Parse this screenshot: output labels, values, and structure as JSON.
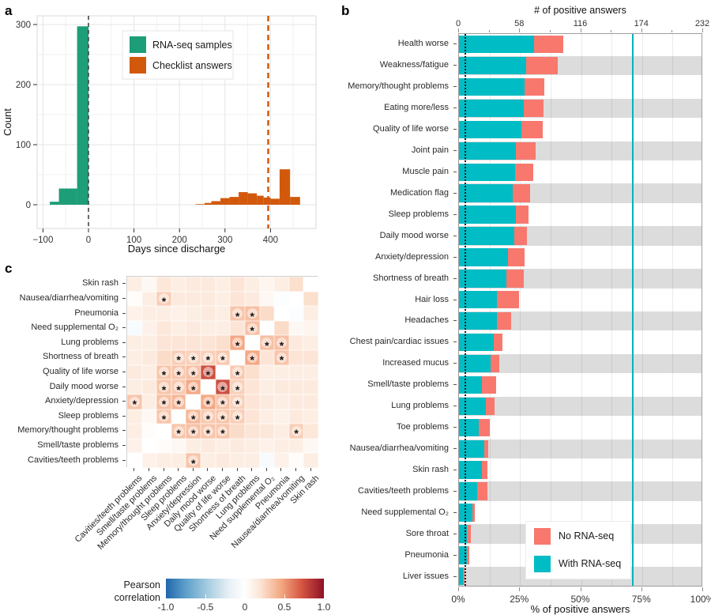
{
  "panels": {
    "a": {
      "label": "a"
    },
    "b": {
      "label": "b"
    },
    "c": {
      "label": "c"
    }
  },
  "chart_data": [
    {
      "id": "a",
      "type": "histogram",
      "xlabel": "Days since discharge",
      "ylabel": "Count",
      "xticks": [
        -100,
        0,
        100,
        200,
        300,
        400
      ],
      "yticks": [
        0,
        100,
        200,
        300
      ],
      "xlim": [
        -115,
        475
      ],
      "ylim": [
        0,
        310
      ],
      "grid_step": 50,
      "series": [
        {
          "name": "RNA-seq samples",
          "color": "#1d9e78",
          "bins": [
            [
              -85,
              -65,
              5
            ],
            [
              -65,
              -25,
              27
            ],
            [
              -25,
              0,
              297
            ]
          ]
        },
        {
          "name": "Checklist answers",
          "color": "#d2590c",
          "bins": [
            [
              235,
              255,
              1
            ],
            [
              255,
              270,
              3
            ],
            [
              270,
              290,
              6
            ],
            [
              290,
              310,
              11
            ],
            [
              310,
              330,
              13
            ],
            [
              330,
              350,
              21
            ],
            [
              350,
              370,
              19
            ],
            [
              370,
              385,
              15
            ],
            [
              385,
              400,
              12
            ],
            [
              400,
              420,
              10
            ],
            [
              420,
              443,
              59
            ],
            [
              443,
              465,
              13
            ]
          ]
        }
      ],
      "vlines": [
        {
          "x": 0,
          "color": "#3a3a3a",
          "width": 1.5,
          "dash": "5 4"
        },
        {
          "x": 395,
          "color": "#d2590c",
          "width": 2.5,
          "dash": "7 5"
        }
      ]
    },
    {
      "id": "b",
      "type": "stacked-barh",
      "top_axis": {
        "title": "# of positive answers",
        "ticks": [
          0,
          58,
          116,
          174,
          232
        ],
        "max": 232
      },
      "bottom_axis": {
        "title": "% of positive answers",
        "tick_labels": [
          "0%",
          "25%",
          "50%",
          "75%",
          "100%"
        ],
        "ticks_pct": [
          0,
          25,
          50,
          75,
          100
        ],
        "max": 100
      },
      "minor_ticks_pct": [
        12.5,
        37.5,
        62.5,
        87.5
      ],
      "legend": [
        {
          "label": "No RNA-seq",
          "color": "#f8786e"
        },
        {
          "label": "With RNA-seq",
          "color": "#00bcc4"
        }
      ],
      "reference_lines": {
        "dotted_black_pct": 2.3,
        "teal_line_pct": 71,
        "teal_color": "#00b3be"
      },
      "stripe_color": "#dcdcdc",
      "rows": [
        {
          "label": "Health worse",
          "with_pct": 30.8,
          "no_pct": 12.0
        },
        {
          "label": "Weakness/fatigue",
          "with_pct": 27.5,
          "no_pct": 13.1
        },
        {
          "label": "Memory/thought problems",
          "with_pct": 26.7,
          "no_pct": 8.4
        },
        {
          "label": "Eating more/less",
          "with_pct": 26.4,
          "no_pct": 8.3
        },
        {
          "label": "Quality of life worse",
          "with_pct": 25.7,
          "no_pct": 8.5
        },
        {
          "label": "Joint pain",
          "with_pct": 23.3,
          "no_pct": 8.1
        },
        {
          "label": "Muscle pain",
          "with_pct": 23.0,
          "no_pct": 7.5
        },
        {
          "label": "Medication flag",
          "with_pct": 21.9,
          "no_pct": 7.2
        },
        {
          "label": "Sleep problems",
          "with_pct": 23.3,
          "no_pct": 5.3
        },
        {
          "label": "Daily mood worse",
          "with_pct": 22.5,
          "no_pct": 5.3
        },
        {
          "label": "Anxiety/depression",
          "with_pct": 20.0,
          "no_pct": 7.0
        },
        {
          "label": "Shortness of breath",
          "with_pct": 19.5,
          "no_pct": 7.2
        },
        {
          "label": "Hair loss",
          "with_pct": 15.5,
          "no_pct": 9.1
        },
        {
          "label": "Headaches",
          "with_pct": 15.4,
          "no_pct": 5.8
        },
        {
          "label": "Chest pain/cardiac issues",
          "with_pct": 14.4,
          "no_pct": 3.4
        },
        {
          "label": "Increased mucus",
          "with_pct": 13.1,
          "no_pct": 3.4
        },
        {
          "label": "Smell/taste problems",
          "with_pct": 9.4,
          "no_pct": 5.8
        },
        {
          "label": "Lung problems",
          "with_pct": 11.0,
          "no_pct": 3.5
        },
        {
          "label": "Toe problems",
          "with_pct": 8.0,
          "no_pct": 4.6
        },
        {
          "label": "Nausea/diarrhea/vomiting",
          "with_pct": 10.2,
          "no_pct": 1.9
        },
        {
          "label": "Skin rash",
          "with_pct": 9.3,
          "no_pct": 2.3
        },
        {
          "label": "Cavities/teeth problems",
          "with_pct": 7.5,
          "no_pct": 4.0
        },
        {
          "label": "Need supplemental O₂",
          "with_pct": 5.6,
          "no_pct": 0.9
        },
        {
          "label": "Sore throat",
          "with_pct": 3.1,
          "no_pct": 1.8
        },
        {
          "label": "Pneumonia",
          "with_pct": 3.3,
          "no_pct": 0.9
        },
        {
          "label": "Liver issues",
          "with_pct": 1.7,
          "no_pct": 0.7
        }
      ]
    },
    {
      "id": "c",
      "type": "heatmap",
      "row_labels": [
        "Skin rash",
        "Nausea/diarrhea/vomiting",
        "Pneumonia",
        "Need supplemental O₂",
        "Lung problems",
        "Shortness of breath",
        "Quality of life worse",
        "Daily mood worse",
        "Anxiety/depression",
        "Sleep problems",
        "Memory/thought problems",
        "Smell/taste problems",
        "Cavities/teeth problems"
      ],
      "col_labels": [
        "Cavities/teeth problems",
        "Smell/taste problems",
        "Memory/thought problems",
        "Sleep problems",
        "Anxiety/depression",
        "Daily mood worse",
        "Quality of life worse",
        "Shortness of breath",
        "Lung problems",
        "Need supplemental O₂",
        "Pneumonia",
        "Nausea/diarrhea/vomiting",
        "Skin rash"
      ],
      "values": [
        [
          0.1,
          0.04,
          0.14,
          0.1,
          0.12,
          0.12,
          0.1,
          0.15,
          0.1,
          0.06,
          0.1,
          0.18,
          null
        ],
        [
          0.02,
          0.1,
          0.26,
          0.12,
          0.12,
          0.12,
          0.1,
          0.15,
          0.12,
          0.04,
          -0.02,
          null,
          0.18
        ],
        [
          0.08,
          0.1,
          0.1,
          0.08,
          0.1,
          0.12,
          0.1,
          0.3,
          0.32,
          0.2,
          null,
          -0.02,
          0.1
        ],
        [
          -0.04,
          0.08,
          0.14,
          0.1,
          0.12,
          0.1,
          0.1,
          0.15,
          0.32,
          null,
          0.2,
          0.04,
          0.06
        ],
        [
          0.1,
          0.1,
          0.15,
          0.15,
          0.15,
          0.15,
          0.18,
          0.42,
          null,
          0.32,
          0.32,
          0.12,
          0.1
        ],
        [
          0.1,
          0.12,
          0.2,
          0.26,
          0.25,
          0.25,
          0.28,
          null,
          0.42,
          0.15,
          0.3,
          0.15,
          0.15
        ],
        [
          0.12,
          0.1,
          0.3,
          0.3,
          0.32,
          0.72,
          null,
          0.28,
          0.18,
          0.1,
          0.1,
          0.1,
          0.1
        ],
        [
          0.1,
          0.12,
          0.3,
          0.28,
          0.42,
          null,
          0.72,
          0.25,
          0.15,
          0.1,
          0.12,
          0.12,
          0.12
        ],
        [
          0.3,
          0.1,
          0.32,
          0.36,
          null,
          0.42,
          0.32,
          0.25,
          0.15,
          0.12,
          0.1,
          0.12,
          0.12
        ],
        [
          0.1,
          0.04,
          0.3,
          null,
          0.36,
          0.28,
          0.3,
          0.26,
          0.15,
          0.1,
          0.08,
          0.12,
          0.1
        ],
        [
          0.1,
          0.02,
          null,
          0.3,
          0.32,
          0.3,
          0.3,
          0.2,
          0.15,
          0.14,
          0.1,
          0.26,
          0.14
        ],
        [
          0.08,
          null,
          0.02,
          0.04,
          0.1,
          0.12,
          0.1,
          0.12,
          0.1,
          0.08,
          0.1,
          0.1,
          0.04
        ],
        [
          null,
          0.08,
          0.1,
          0.1,
          0.3,
          0.1,
          0.12,
          0.1,
          0.1,
          -0.04,
          0.08,
          0.02,
          0.1
        ]
      ],
      "sig_cells": [
        [
          1,
          2
        ],
        [
          2,
          7
        ],
        [
          2,
          8
        ],
        [
          3,
          8
        ],
        [
          4,
          7
        ],
        [
          4,
          9
        ],
        [
          4,
          10
        ],
        [
          5,
          3
        ],
        [
          5,
          4
        ],
        [
          5,
          5
        ],
        [
          5,
          6
        ],
        [
          5,
          8
        ],
        [
          5,
          10
        ],
        [
          6,
          2
        ],
        [
          6,
          3
        ],
        [
          6,
          4
        ],
        [
          6,
          5
        ],
        [
          6,
          7
        ],
        [
          7,
          2
        ],
        [
          7,
          3
        ],
        [
          7,
          4
        ],
        [
          7,
          6
        ],
        [
          7,
          7
        ],
        [
          8,
          0
        ],
        [
          8,
          2
        ],
        [
          8,
          3
        ],
        [
          8,
          5
        ],
        [
          8,
          6
        ],
        [
          8,
          7
        ],
        [
          9,
          2
        ],
        [
          9,
          4
        ],
        [
          9,
          5
        ],
        [
          9,
          6
        ],
        [
          9,
          7
        ],
        [
          10,
          3
        ],
        [
          10,
          4
        ],
        [
          10,
          5
        ],
        [
          10,
          6
        ],
        [
          10,
          11
        ],
        [
          12,
          4
        ]
      ],
      "sig_marker": "*",
      "colorbar": {
        "label": "Pearson correlation",
        "tick_labels": [
          "-1.0",
          "-0.5",
          "0",
          "0.5",
          "1.0"
        ],
        "min": -1,
        "max": 1
      }
    }
  ]
}
